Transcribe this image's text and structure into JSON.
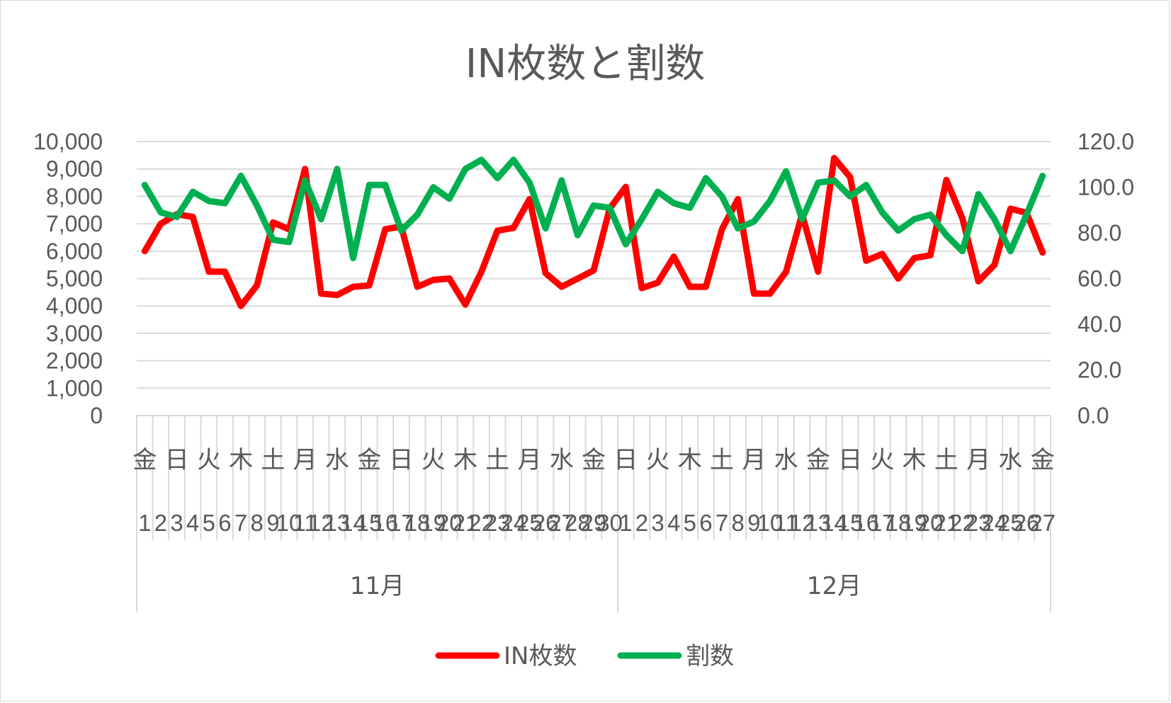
{
  "chart_data": {
    "type": "line",
    "title": "IN枚数と割数",
    "x": {
      "months": [
        "11月",
        "12月"
      ],
      "days_per_month": [
        30,
        27
      ],
      "weekday_labels": [
        "金",
        "日",
        "火",
        "木",
        "土",
        "月",
        "水",
        "金",
        "日",
        "火",
        "木",
        "土",
        "月",
        "水",
        "金",
        "日",
        "火",
        "木",
        "土",
        "月",
        "水",
        "金",
        "日",
        "火",
        "木",
        "土",
        "月",
        "水",
        "金"
      ]
    },
    "y_left": {
      "range": [
        0,
        10000
      ],
      "ticks": [
        "0",
        "1,000",
        "2,000",
        "3,000",
        "4,000",
        "5,000",
        "6,000",
        "7,000",
        "8,000",
        "9,000",
        "10,000"
      ]
    },
    "y_right": {
      "range": [
        0,
        120
      ],
      "ticks": [
        "0.0",
        "20.0",
        "40.0",
        "60.0",
        "80.0",
        "100.0",
        "120.0"
      ]
    },
    "grid": true,
    "legend_position": "bottom",
    "series": [
      {
        "name": "IN枚数",
        "axis": "left",
        "color": "#ff0000",
        "values": [
          6000,
          7000,
          7350,
          7250,
          5250,
          5250,
          4000,
          4750,
          7050,
          6800,
          9000,
          4450,
          4400,
          4700,
          4750,
          6800,
          6900,
          4700,
          4950,
          5000,
          4050,
          5250,
          6750,
          6850,
          7900,
          5200,
          4700,
          5000,
          5300,
          7550,
          8350,
          4650,
          4850,
          5800,
          4700,
          4700,
          6800,
          7900,
          4450,
          4450,
          5250,
          7350,
          5250,
          9400,
          8700,
          5650,
          5900,
          5000,
          5750,
          5850,
          8600,
          7200,
          4900,
          5500,
          7550,
          7400,
          5950
        ]
      },
      {
        "name": "割数",
        "axis": "right",
        "color": "#00b050",
        "values": [
          101,
          89,
          87,
          98,
          94,
          93,
          105,
          92,
          77,
          76,
          103,
          86,
          108,
          69,
          101,
          101,
          81,
          88,
          100,
          95,
          108,
          112,
          104,
          112,
          102,
          82,
          103,
          79,
          92,
          91,
          75,
          86,
          98,
          93,
          91,
          104,
          96,
          82,
          85,
          94,
          107,
          86,
          102,
          103,
          96,
          101,
          89,
          81,
          86,
          88,
          79,
          72,
          97,
          86,
          72,
          88,
          105
        ]
      }
    ]
  }
}
